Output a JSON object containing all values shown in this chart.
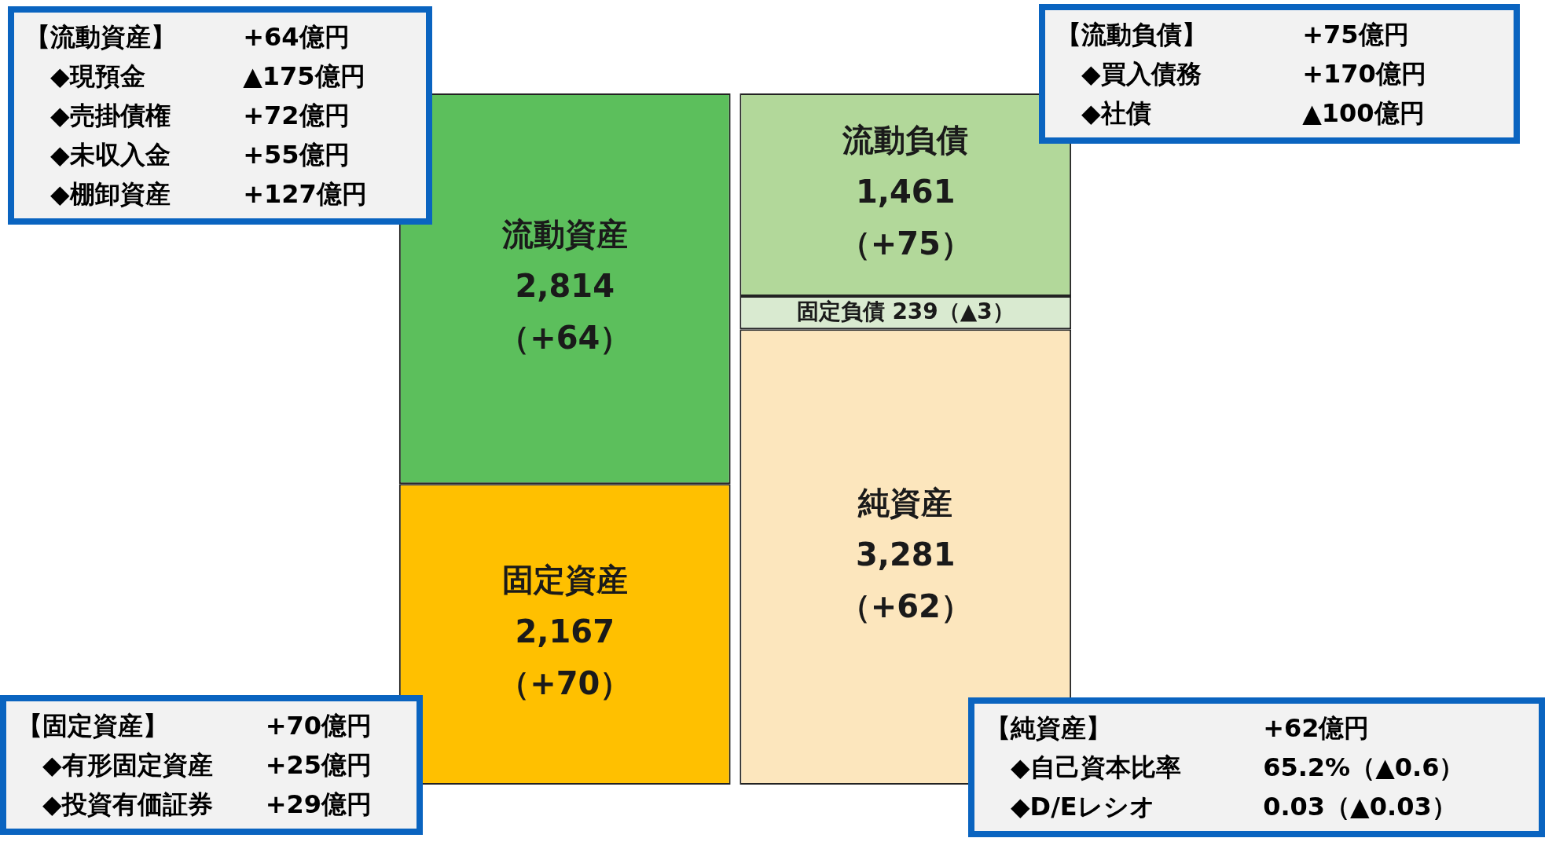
{
  "chart_data": {
    "type": "bar",
    "stacked": true,
    "tick_labels": false,
    "categories": [
      null,
      null
    ],
    "series": [
      {
        "name": "固定資産",
        "color": "#ffc000",
        "values": [
          2167,
          null
        ],
        "value_labels": [
          "2,167\n（+70）",
          null
        ]
      },
      {
        "name": "流動資産",
        "color": "#5cbf5c",
        "values": [
          2814,
          null
        ],
        "value_labels": [
          "2,814\n（+64）",
          null
        ]
      },
      {
        "name": "純資産",
        "color": "#fce6bd",
        "values": [
          null,
          3281
        ],
        "value_labels": [
          null,
          "3,281\n（+62）"
        ]
      },
      {
        "name": "固定負債",
        "color": "#d9ead0",
        "values": [
          null,
          239
        ],
        "value_labels": [
          null,
          "239（▲3）"
        ]
      },
      {
        "name": "流動負債",
        "color": "#b2d89a",
        "values": [
          null,
          1461
        ],
        "value_labels": [
          null,
          "1,461\n（+75）"
        ]
      }
    ],
    "annotations": [
      "【流動資産】\t+64億円\n　◆現預金\t▲175億円\n　◆売掛債権\t+72億円\n　◆未収入金\t+55億円\n　◆棚卸資産\t+127億円",
      "【流動負債】\t+75億円\n　◆買入債務\t+170億円\n　◆社債\t▲100億円",
      "【固定資産】\t+70億円\n　◆有形固定資産\t+25億円\n　◆投資有価証券\t+29億円",
      "【純資産】\t+62億円\n　◆自己資本比率\t65.2%（▲0.6）\n　◆D/Eレシオ\t0.03（▲0.03）"
    ]
  }
}
